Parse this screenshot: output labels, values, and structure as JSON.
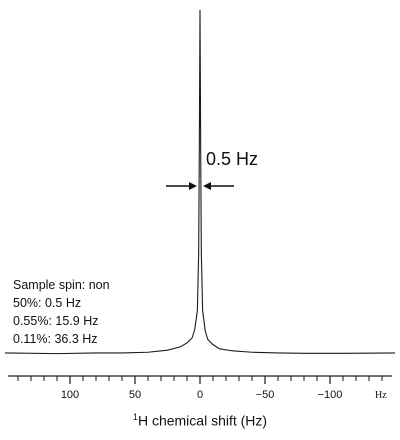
{
  "chart_data": {
    "type": "line",
    "title": "",
    "xlabel_superscript": "1",
    "xlabel_main": "H chemical shift (Hz)",
    "xlim": [
      150,
      -150
    ],
    "x_reversed": true,
    "ticks": [
      100,
      50,
      0,
      -50,
      -100
    ],
    "tick_labels": [
      "100",
      "50",
      "0",
      "−50",
      "−100"
    ],
    "axis_unit": "Hz",
    "peak_position_hz": 0,
    "peak_linewidth_label": "0.5 Hz",
    "annotations": [
      "Sample spin: non",
      "50%: 0.5 Hz",
      "0.55%: 15.9 Hz",
      "0.11%: 36.3 Hz"
    ],
    "series": [
      {
        "x": [
          150,
          110,
          80,
          60,
          40,
          25,
          15,
          10,
          6,
          4,
          2,
          1,
          0.5,
          0,
          -0.5,
          -1,
          -2,
          -4,
          -6,
          -10,
          -15,
          -25,
          -40,
          -60,
          -80,
          -110,
          -150
        ],
        "y": [
          0.006,
          0.004,
          0.006,
          0.006,
          0.008,
          0.014,
          0.024,
          0.035,
          0.05,
          0.075,
          0.13,
          0.3,
          0.62,
          1.0,
          0.62,
          0.3,
          0.13,
          0.07,
          0.045,
          0.03,
          0.018,
          0.012,
          0.008,
          0.006,
          0.005,
          0.005,
          0.006
        ]
      }
    ]
  }
}
